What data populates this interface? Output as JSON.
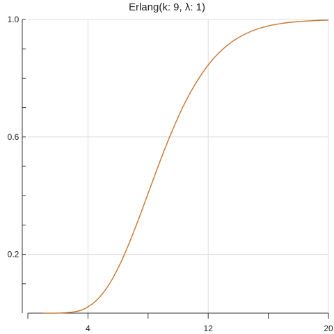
{
  "chart_data": {
    "type": "line",
    "title": "Erlang(k: 9, λ: 1)",
    "xlabel": "",
    "ylabel": "",
    "xlim": [
      0,
      20
    ],
    "ylim": [
      0,
      1
    ],
    "grid": true,
    "line_color": "#c8742e",
    "x_ticks": [
      4,
      12,
      20
    ],
    "x_tick_labels": [
      "4",
      "12",
      "20"
    ],
    "x_minor_ticks": [
      0,
      8,
      16
    ],
    "y_ticks": [
      0.2,
      0.6,
      1.0
    ],
    "y_tick_labels": [
      "0.2",
      "0.6",
      "1.0"
    ],
    "y_minor_ticks": [
      0.1,
      0.3,
      0.4,
      0.5,
      0.7,
      0.8,
      0.9
    ],
    "series": [
      {
        "x": [
          1,
          2,
          3,
          3.5,
          4,
          4.5,
          5,
          5.5,
          6,
          6.5,
          7,
          7.5,
          8,
          8.5,
          9,
          9.5,
          10,
          10.5,
          11,
          11.5,
          12,
          12.5,
          13,
          13.5,
          14,
          15,
          16,
          17,
          18,
          19,
          20
        ],
        "y": [
          0.0,
          0.0002,
          0.0038,
          0.009,
          0.0214,
          0.0403,
          0.0681,
          0.1056,
          0.1528,
          0.2084,
          0.2709,
          0.338,
          0.4075,
          0.4767,
          0.5443,
          0.6081,
          0.6672,
          0.7207,
          0.768,
          0.8094,
          0.845,
          0.8751,
          0.9002,
          0.9209,
          0.9379,
          0.9626,
          0.978,
          0.9874,
          0.9929,
          0.9961,
          0.9979
        ]
      }
    ]
  }
}
